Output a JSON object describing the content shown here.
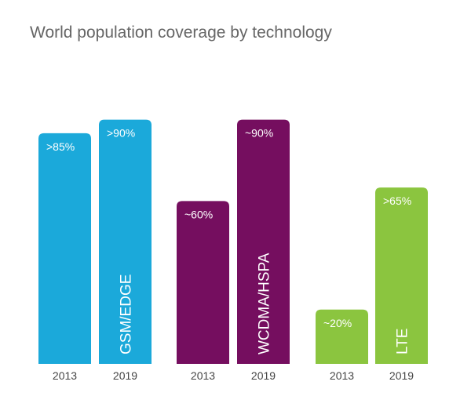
{
  "chart_data": {
    "type": "bar",
    "title": "World population coverage by technology",
    "xlabel": "",
    "ylabel": "",
    "ylim": [
      0,
      100
    ],
    "grid": false,
    "groups": [
      {
        "name": "GSM/EDGE",
        "color": "#1BA9DA",
        "bars": [
          {
            "year": "2013",
            "value": 85,
            "label": ">85%"
          },
          {
            "year": "2019",
            "value": 90,
            "label": ">90%"
          }
        ]
      },
      {
        "name": "WCDMA/HSPA",
        "color": "#750E5F",
        "bars": [
          {
            "year": "2013",
            "value": 60,
            "label": "~60%"
          },
          {
            "year": "2019",
            "value": 90,
            "label": "~90%"
          }
        ]
      },
      {
        "name": "LTE",
        "color": "#8BC53F",
        "bars": [
          {
            "year": "2013",
            "value": 20,
            "label": "~20%"
          },
          {
            "year": "2019",
            "value": 65,
            "label": ">65%"
          }
        ]
      }
    ]
  }
}
